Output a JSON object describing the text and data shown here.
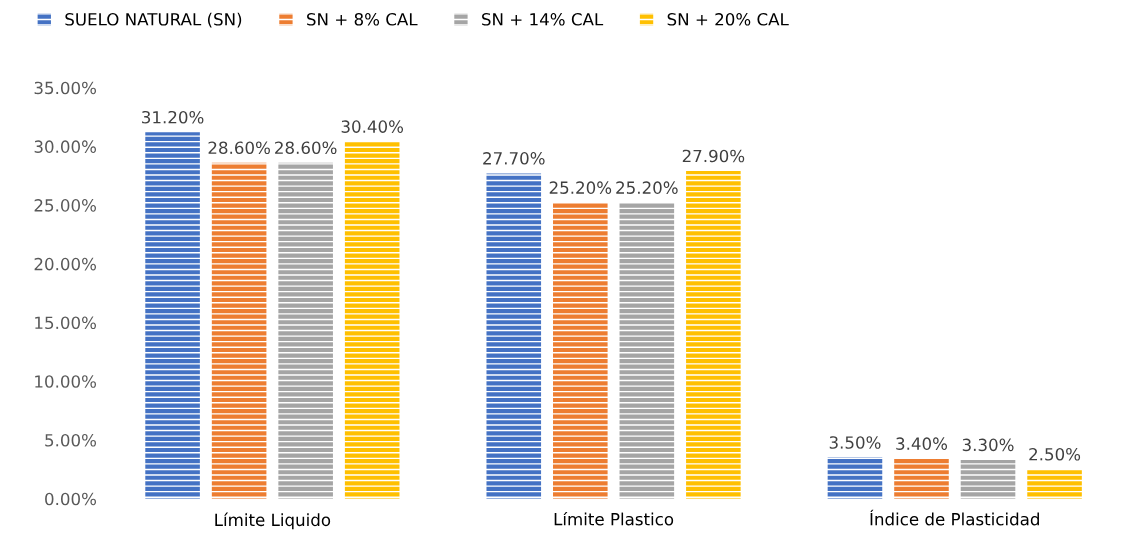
{
  "chart_data": {
    "type": "bar",
    "categories": [
      "Límite Liquido",
      "Límite Plastico",
      "Índice de Plasticidad"
    ],
    "series": [
      {
        "name": "SUELO NATURAL (SN)",
        "color": "#4472c4",
        "values": [
          31.2,
          27.7,
          3.5
        ],
        "value_labels": [
          "31.20%",
          "27.70%",
          "3.50%"
        ]
      },
      {
        "name": "SN + 8% CAL",
        "color": "#ed7d31",
        "values": [
          28.6,
          25.2,
          3.4
        ],
        "value_labels": [
          "28.60%",
          "25.20%",
          "3.40%"
        ]
      },
      {
        "name": "SN + 14% CAL",
        "color": "#a5a5a5",
        "values": [
          28.6,
          25.2,
          3.3
        ],
        "value_labels": [
          "28.60%",
          "25.20%",
          "3.30%"
        ]
      },
      {
        "name": "SN + 20% CAL",
        "color": "#ffc000",
        "values": [
          30.4,
          27.9,
          2.5
        ],
        "value_labels": [
          "30.40%",
          "27.90%",
          "2.50%"
        ]
      }
    ],
    "ylim": [
      0,
      35
    ],
    "yticks": [
      {
        "value": 0,
        "label": "0.00%"
      },
      {
        "value": 5,
        "label": "5.00%"
      },
      {
        "value": 10,
        "label": "10.00%"
      },
      {
        "value": 15,
        "label": "15.00%"
      },
      {
        "value": 20,
        "label": "20.00%"
      },
      {
        "value": 25,
        "label": "25.00%"
      },
      {
        "value": 30,
        "label": "30.00%"
      },
      {
        "value": 35,
        "label": "35.00%"
      }
    ],
    "grid": false,
    "legend": "top left"
  }
}
